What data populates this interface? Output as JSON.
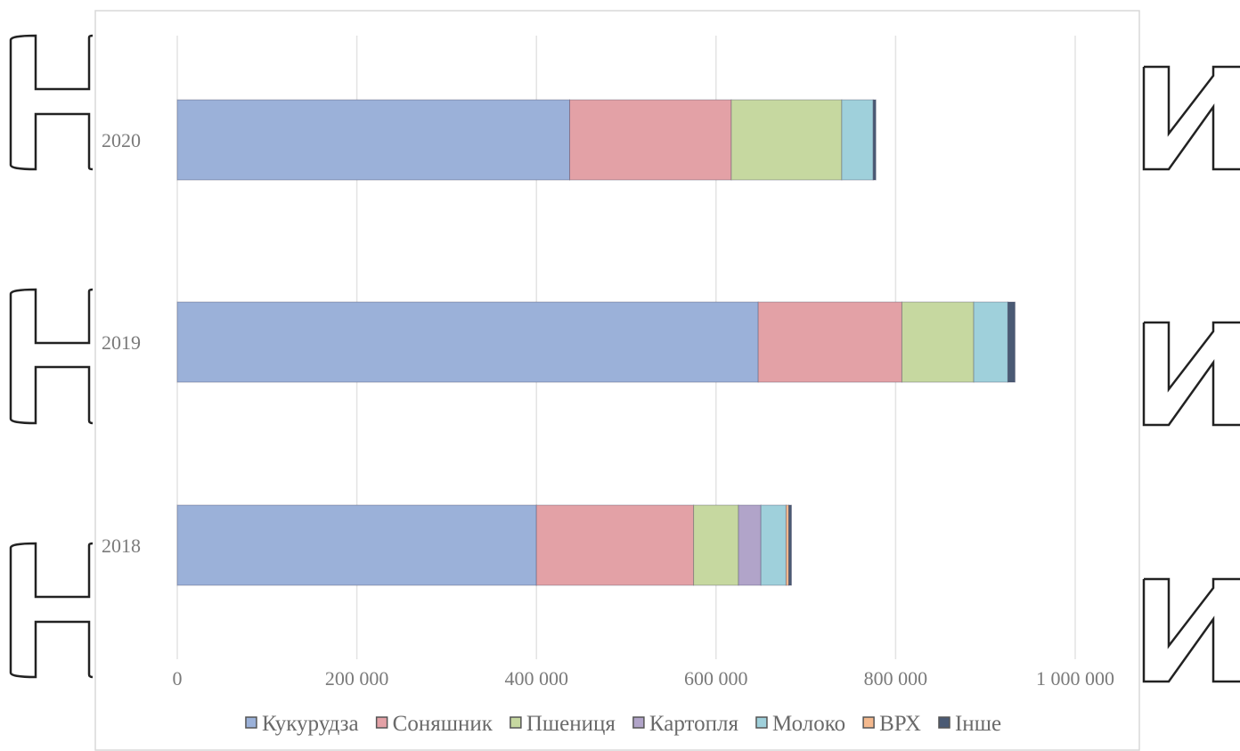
{
  "chart_data": {
    "type": "bar",
    "orientation": "horizontal",
    "stacked": true,
    "categories": [
      "2020",
      "2019",
      "2018"
    ],
    "series": [
      {
        "name": "Кукурудза",
        "color": "#9bb1d9",
        "values": [
          437000,
          647000,
          400000
        ]
      },
      {
        "name": "Соняшник",
        "color": "#e3a1a6",
        "values": [
          180000,
          160000,
          175000
        ]
      },
      {
        "name": "Пшениця",
        "color": "#c6d8a0",
        "values": [
          123000,
          80000,
          50000
        ]
      },
      {
        "name": "Картопля",
        "color": "#b1a4c9",
        "values": [
          0,
          0,
          25000
        ]
      },
      {
        "name": "Молоко",
        "color": "#9fd0db",
        "values": [
          35000,
          38000,
          28000
        ]
      },
      {
        "name": "ВРХ",
        "color": "#f4b98e",
        "values": [
          0,
          0,
          3000
        ]
      },
      {
        "name": "Інше",
        "color": "#4a5a74",
        "values": [
          3000,
          8000,
          3000
        ]
      }
    ],
    "x_ticks": [
      "0",
      "200 000",
      "400 000",
      "600 000",
      "800 000",
      "1 000 000"
    ],
    "xlim": [
      0,
      1000000
    ],
    "grid": true,
    "legend_position": "bottom",
    "title": "",
    "xlabel": "",
    "ylabel": ""
  }
}
